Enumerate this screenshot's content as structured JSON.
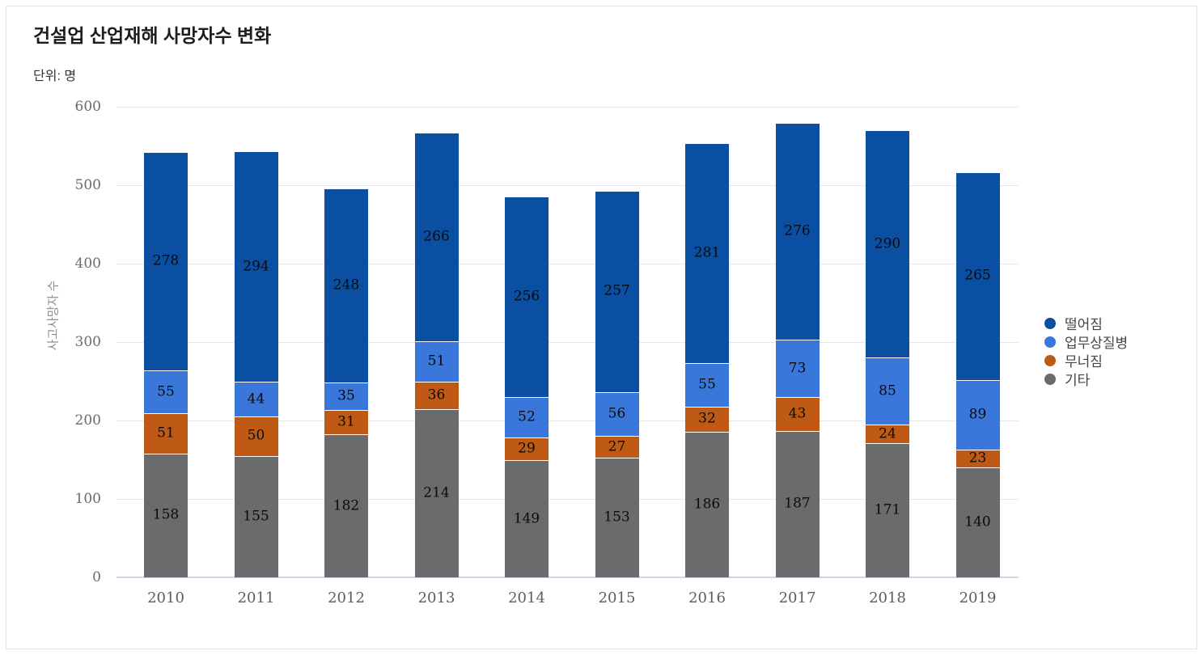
{
  "chart_data": {
    "type": "bar",
    "stacked": true,
    "title": "건설업 산업재해 사망자수 변화",
    "unit_label": "단위: 명",
    "ylabel": "사고사망자 수",
    "xlabel": "",
    "categories": [
      "2010",
      "2011",
      "2012",
      "2013",
      "2014",
      "2015",
      "2016",
      "2017",
      "2018",
      "2019"
    ],
    "series": [
      {
        "name": "떨어짐",
        "color": "#0a4fa1",
        "values": [
          278,
          294,
          248,
          266,
          256,
          257,
          281,
          276,
          290,
          265
        ]
      },
      {
        "name": "업무상질병",
        "color": "#3a77db",
        "values": [
          55,
          44,
          35,
          51,
          52,
          56,
          55,
          73,
          85,
          89
        ]
      },
      {
        "name": "무너짐",
        "color": "#bf5a15",
        "values": [
          51,
          50,
          31,
          36,
          29,
          27,
          32,
          43,
          24,
          23
        ]
      },
      {
        "name": "기타",
        "color": "#6b6b6b",
        "values": [
          158,
          155,
          182,
          214,
          149,
          153,
          186,
          187,
          171,
          140
        ]
      }
    ],
    "stack_order_bottom_to_top": [
      "기타",
      "무너짐",
      "업무상질병",
      "떨어짐"
    ],
    "totals": [
      542,
      543,
      496,
      567,
      486,
      493,
      554,
      579,
      570,
      517
    ],
    "ylim": [
      0,
      600
    ],
    "yticks": [
      0,
      100,
      200,
      300,
      400,
      500,
      600
    ],
    "grid": true,
    "legend_position": "right",
    "bar_labels_shown": true
  },
  "colors": {
    "grid": "#e8e8e8",
    "baseline": "#ccd9ea",
    "tick_text": "#666b72",
    "bar_label_text": "#0b0b0b",
    "title_text": "#1d1d1d",
    "card_border": "#e2e2e2"
  }
}
